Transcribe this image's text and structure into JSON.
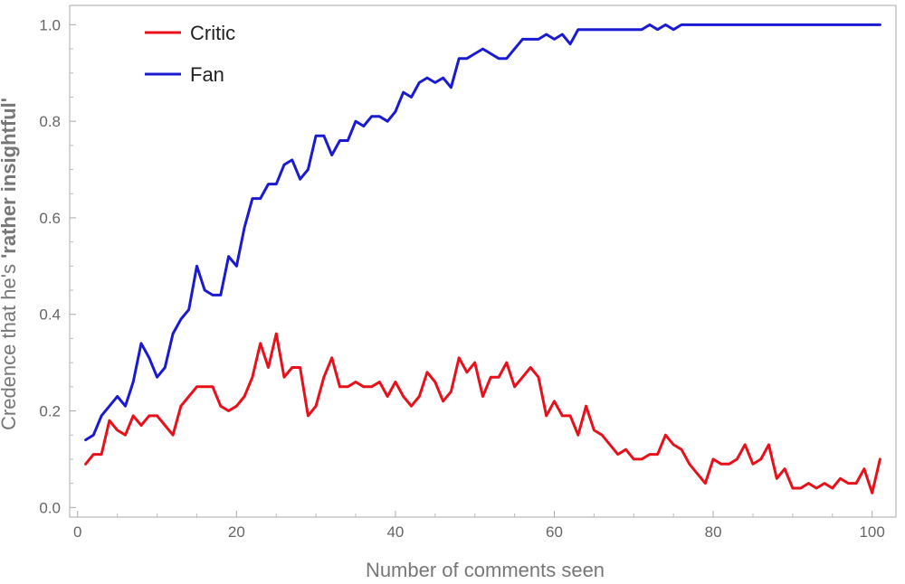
{
  "chart_data": {
    "type": "line",
    "xlabel": "Number of comments seen",
    "ylabel_prefix": "Credence that he's ",
    "ylabel_bold": "'rather insightful'",
    "xlim": [
      -1,
      103
    ],
    "ylim": [
      -0.02,
      1.04
    ],
    "xticks": [
      0,
      20,
      40,
      60,
      80,
      100
    ],
    "yticks": [
      0.0,
      0.2,
      0.4,
      0.6,
      0.8,
      1.0
    ],
    "ytick_labels": [
      "0.0",
      "0.2",
      "0.4",
      "0.6",
      "0.8",
      "1.0"
    ],
    "legend_position": "top-left",
    "series": [
      {
        "name": "Critic",
        "color": "#e8101a",
        "x": [
          1,
          2,
          3,
          4,
          5,
          6,
          7,
          8,
          9,
          10,
          11,
          12,
          13,
          14,
          15,
          16,
          17,
          18,
          19,
          20,
          21,
          22,
          23,
          24,
          25,
          26,
          27,
          28,
          29,
          30,
          31,
          32,
          33,
          34,
          35,
          36,
          37,
          38,
          39,
          40,
          41,
          42,
          43,
          44,
          45,
          46,
          47,
          48,
          49,
          50,
          51,
          52,
          53,
          54,
          55,
          56,
          57,
          58,
          59,
          60,
          61,
          62,
          63,
          64,
          65,
          66,
          67,
          68,
          69,
          70,
          71,
          72,
          73,
          74,
          75,
          76,
          77,
          78,
          79,
          80,
          81,
          82,
          83,
          84,
          85,
          86,
          87,
          88,
          89,
          90,
          91,
          92,
          93,
          94,
          95,
          96,
          97,
          98,
          99,
          100,
          101
        ],
        "values": [
          0.09,
          0.11,
          0.11,
          0.18,
          0.16,
          0.15,
          0.19,
          0.17,
          0.19,
          0.19,
          0.17,
          0.15,
          0.21,
          0.23,
          0.25,
          0.25,
          0.25,
          0.21,
          0.2,
          0.21,
          0.23,
          0.27,
          0.34,
          0.29,
          0.36,
          0.27,
          0.29,
          0.29,
          0.19,
          0.21,
          0.27,
          0.31,
          0.25,
          0.25,
          0.26,
          0.25,
          0.25,
          0.26,
          0.23,
          0.26,
          0.23,
          0.21,
          0.23,
          0.28,
          0.26,
          0.22,
          0.24,
          0.31,
          0.28,
          0.3,
          0.23,
          0.27,
          0.27,
          0.3,
          0.25,
          0.27,
          0.29,
          0.27,
          0.19,
          0.22,
          0.19,
          0.19,
          0.15,
          0.21,
          0.16,
          0.15,
          0.13,
          0.11,
          0.12,
          0.1,
          0.1,
          0.11,
          0.11,
          0.15,
          0.13,
          0.12,
          0.09,
          0.07,
          0.05,
          0.1,
          0.09,
          0.09,
          0.1,
          0.13,
          0.09,
          0.1,
          0.13,
          0.06,
          0.08,
          0.04,
          0.04,
          0.05,
          0.04,
          0.05,
          0.04,
          0.06,
          0.05,
          0.05,
          0.08,
          0.03,
          0.1
        ]
      },
      {
        "name": "Fan",
        "color": "#1a1ad2",
        "x": [
          1,
          2,
          3,
          4,
          5,
          6,
          7,
          8,
          9,
          10,
          11,
          12,
          13,
          14,
          15,
          16,
          17,
          18,
          19,
          20,
          21,
          22,
          23,
          24,
          25,
          26,
          27,
          28,
          29,
          30,
          31,
          32,
          33,
          34,
          35,
          36,
          37,
          38,
          39,
          40,
          41,
          42,
          43,
          44,
          45,
          46,
          47,
          48,
          49,
          50,
          51,
          52,
          53,
          54,
          55,
          56,
          57,
          58,
          59,
          60,
          61,
          62,
          63,
          64,
          65,
          66,
          67,
          68,
          69,
          70,
          71,
          72,
          73,
          74,
          75,
          76,
          77,
          78,
          79,
          80,
          81,
          82,
          83,
          84,
          85,
          86,
          87,
          88,
          89,
          90,
          91,
          92,
          93,
          94,
          95,
          96,
          97,
          98,
          99,
          100,
          101
        ],
        "values": [
          0.14,
          0.15,
          0.19,
          0.21,
          0.23,
          0.21,
          0.26,
          0.34,
          0.31,
          0.27,
          0.29,
          0.36,
          0.39,
          0.41,
          0.5,
          0.45,
          0.44,
          0.44,
          0.52,
          0.5,
          0.58,
          0.64,
          0.64,
          0.67,
          0.67,
          0.71,
          0.72,
          0.68,
          0.7,
          0.77,
          0.77,
          0.73,
          0.76,
          0.76,
          0.8,
          0.79,
          0.81,
          0.81,
          0.8,
          0.82,
          0.86,
          0.85,
          0.88,
          0.89,
          0.88,
          0.89,
          0.87,
          0.93,
          0.93,
          0.94,
          0.95,
          0.94,
          0.93,
          0.93,
          0.95,
          0.97,
          0.97,
          0.97,
          0.98,
          0.97,
          0.98,
          0.96,
          0.99,
          0.99,
          0.99,
          0.99,
          0.99,
          0.99,
          0.99,
          0.99,
          0.99,
          1.0,
          0.99,
          1.0,
          0.99,
          1.0,
          1.0,
          1.0,
          1.0,
          1.0,
          1.0,
          1.0,
          1.0,
          1.0,
          1.0,
          1.0,
          1.0,
          1.0,
          1.0,
          1.0,
          1.0,
          1.0,
          1.0,
          1.0,
          1.0,
          1.0,
          1.0,
          1.0,
          1.0,
          1.0,
          1.0
        ]
      }
    ]
  }
}
